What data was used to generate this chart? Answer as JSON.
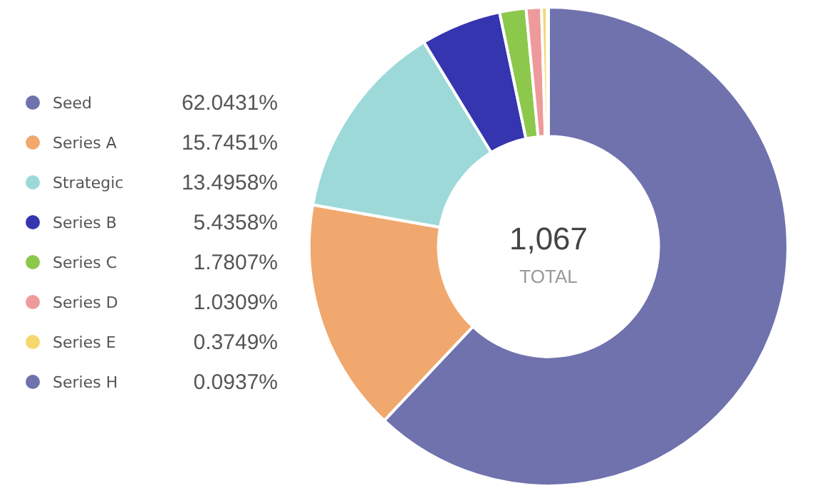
{
  "chart_data": {
    "type": "donut",
    "categories": [
      "Seed",
      "Series A",
      "Strategic",
      "Series B",
      "Series C",
      "Series D",
      "Series E",
      "Series H"
    ],
    "values": [
      62.0431,
      15.7451,
      13.4958,
      5.4358,
      1.7807,
      1.0309,
      0.3749,
      0.0937
    ],
    "value_labels": [
      "62.0431%",
      "15.7451%",
      "13.4958%",
      "5.4358%",
      "1.7807%",
      "1.0309%",
      "0.3749%",
      "0.0937%"
    ],
    "colors": [
      "#6f72ad",
      "#f0a86e",
      "#9dd9d9",
      "#3535b0",
      "#8cc84b",
      "#ee9a9a",
      "#f5d76e",
      "#6f72ad"
    ],
    "annotations": [
      "1,067",
      "TOTAL"
    ],
    "legend": "left"
  }
}
